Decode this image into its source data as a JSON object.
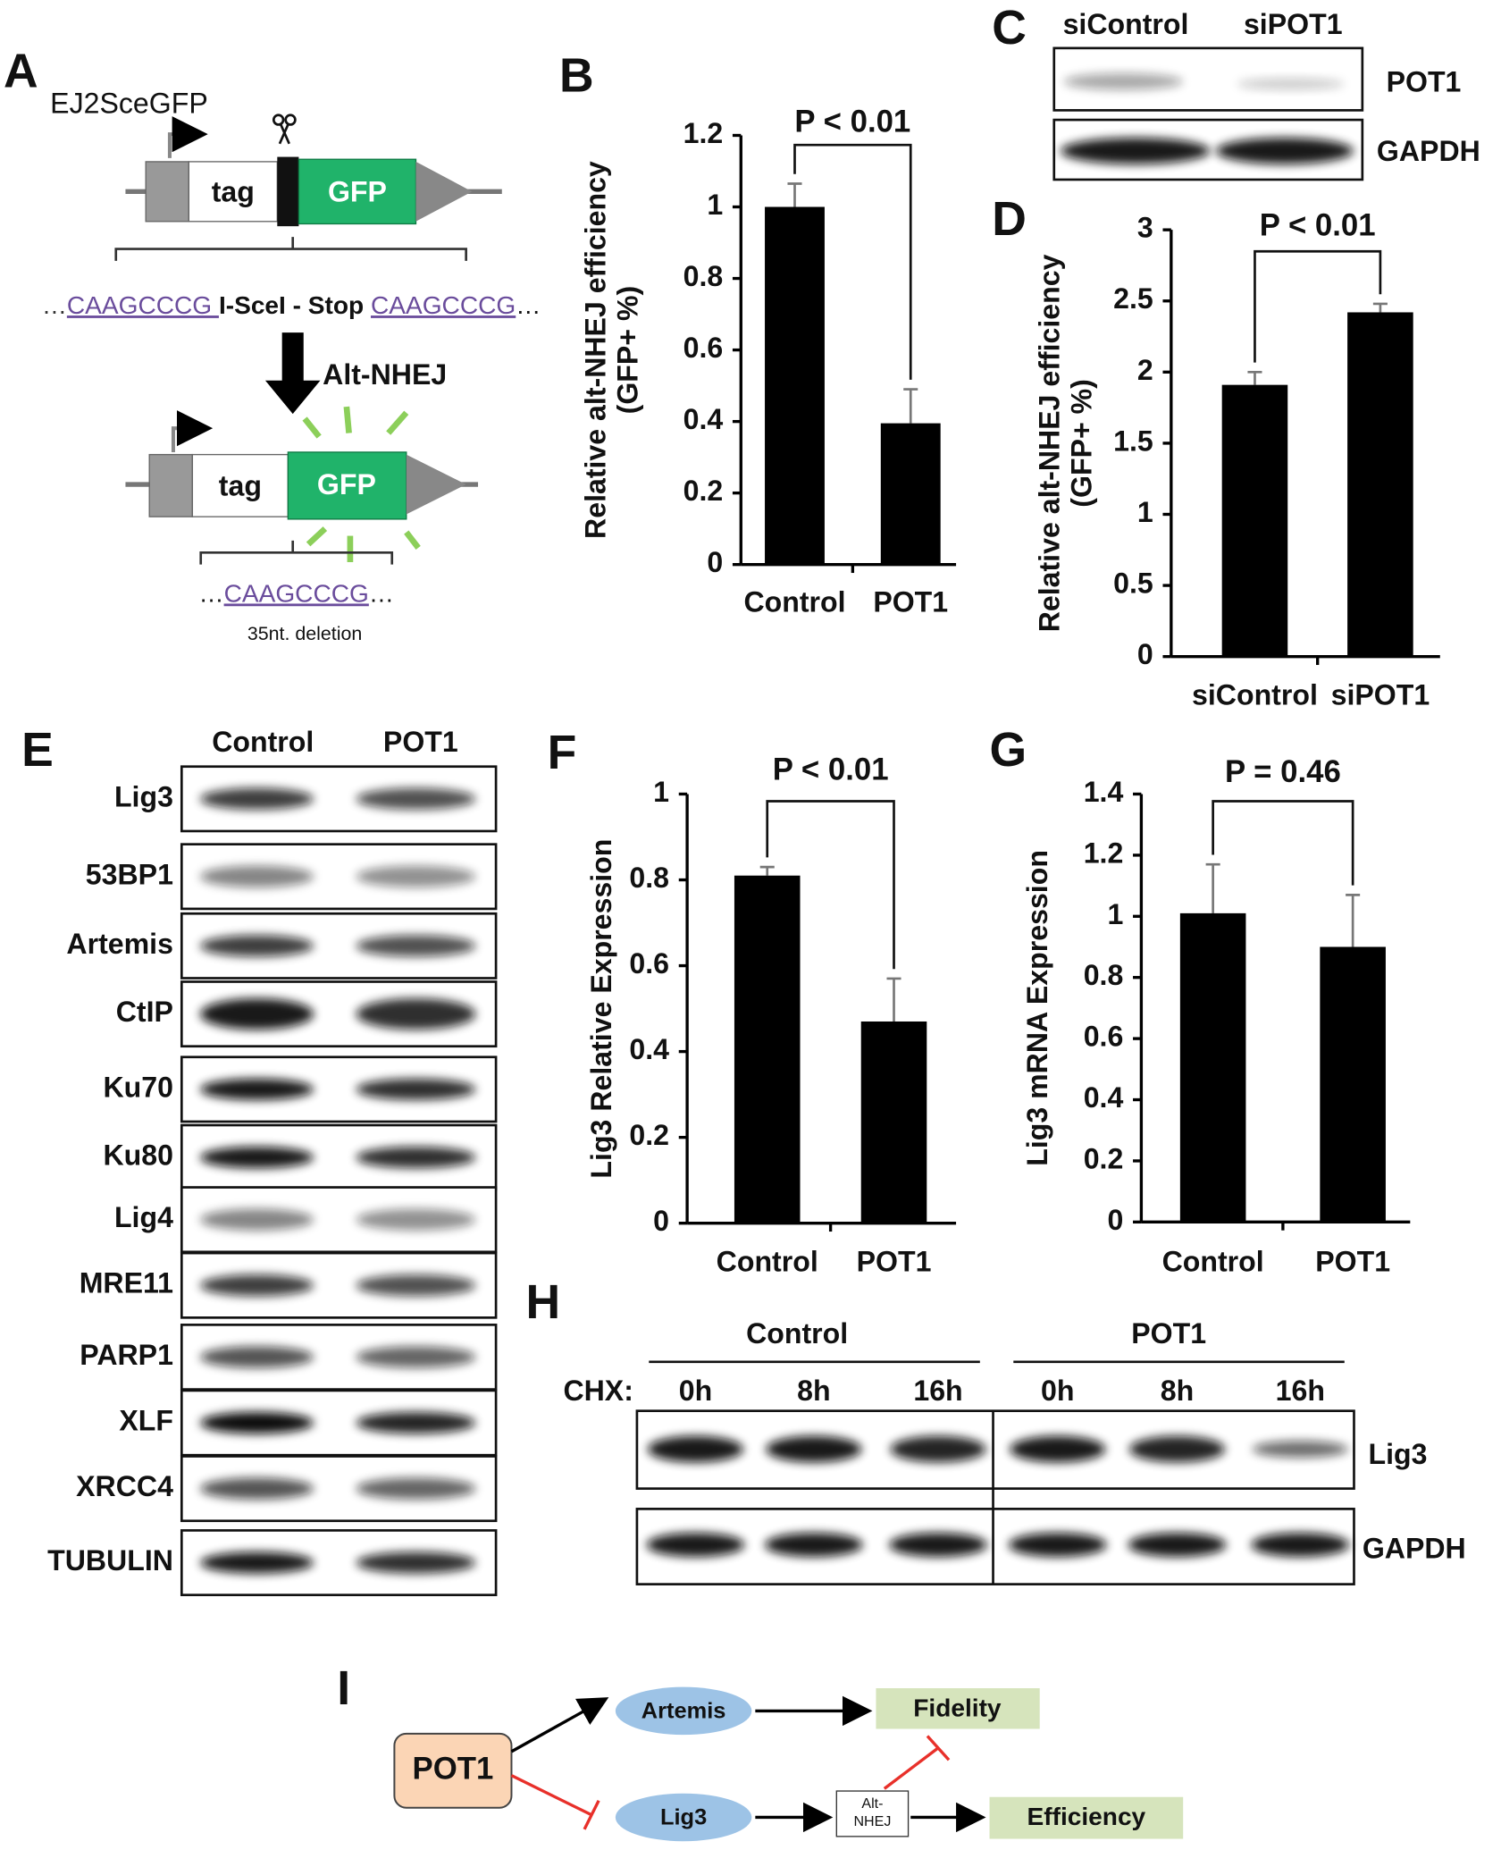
{
  "panels": {
    "letters": [
      "A",
      "B",
      "C",
      "D",
      "E",
      "F",
      "G",
      "H",
      "I"
    ],
    "A": {
      "construct": "EJ2SceGFP",
      "tag1": "tag",
      "gfp1": "GFP",
      "seq1": [
        "…",
        "CAAGCCCG ",
        "I-SceI - Stop ",
        "CAAGCCCG",
        "…"
      ],
      "arrow": "Alt-NHEJ",
      "tag2": "tag",
      "gfp2": "GFP",
      "seq2": [
        "…",
        "CAAGCCCG",
        "…"
      ],
      "note": "35nt. deletion"
    },
    "C": {
      "lanes": [
        "siControl",
        "siPOT1"
      ],
      "rows": [
        "POT1",
        "GAPDH"
      ]
    },
    "E": {
      "lanes": [
        "Control",
        "POT1"
      ],
      "rows": [
        "Lig3",
        "53BP1",
        "Artemis",
        "CtIP",
        "Ku70",
        "Ku80",
        "Lig4",
        "MRE11",
        "PARP1",
        "XLF",
        "XRCC4",
        "TUBULIN"
      ]
    },
    "H": {
      "groups": [
        "Control",
        "POT1"
      ],
      "treatment": "CHX:",
      "times": [
        "0h",
        "8h",
        "16h",
        "0h",
        "8h",
        "16h"
      ],
      "rows": [
        "Lig3",
        "GAPDH"
      ]
    },
    "I": {
      "nodes": [
        "POT1",
        "Artemis",
        "Lig3",
        "Fidelity",
        "Alt-",
        "NHEJ",
        "Efficiency"
      ]
    }
  },
  "chart_data": [
    {
      "type": "bar",
      "y_label": [
        "Relative alt-NHEJ efficiency",
        "(GFP+ %)"
      ],
      "categories": [
        "Control",
        "POT1"
      ],
      "values": [
        1.0,
        0.395
      ],
      "errors": [
        0.065,
        0.095
      ],
      "color": "#000000",
      "ylim": [
        0,
        1.2
      ],
      "yticks": [
        0,
        0.2,
        0.4,
        0.6,
        0.8,
        1,
        1.2
      ],
      "annotation": "P < 0.01"
    },
    {
      "type": "bar",
      "y_label": [
        "Relative alt-NHEJ efficiency",
        "(GFP+ %)"
      ],
      "categories": [
        "siControl",
        "siPOT1"
      ],
      "values": [
        1.91,
        2.42
      ],
      "errors": [
        0.09,
        0.06
      ],
      "color": "#000000",
      "ylim": [
        0,
        3
      ],
      "yticks": [
        0,
        0.5,
        1,
        1.5,
        2,
        2.5,
        3
      ],
      "annotation": "P < 0.01"
    },
    {
      "type": "bar",
      "y_label": [
        "Lig3 Relative Expression"
      ],
      "categories": [
        "Control",
        "POT1"
      ],
      "values": [
        0.81,
        0.47
      ],
      "errors": [
        0.02,
        0.1
      ],
      "color": "#000000",
      "ylim": [
        0,
        1
      ],
      "yticks": [
        0,
        0.2,
        0.4,
        0.6,
        0.8,
        1
      ],
      "annotation": "P < 0.01"
    },
    {
      "type": "bar",
      "y_label": [
        "Lig3 mRNA Expression"
      ],
      "categories": [
        "Control",
        "POT1"
      ],
      "values": [
        1.01,
        0.9
      ],
      "errors": [
        0.16,
        0.17
      ],
      "color": "#000000",
      "ylim": [
        0,
        1.4
      ],
      "yticks": [
        0,
        0.2,
        0.4,
        0.6,
        0.8,
        1,
        1.2,
        1.4
      ],
      "annotation": "P = 0.46"
    }
  ]
}
